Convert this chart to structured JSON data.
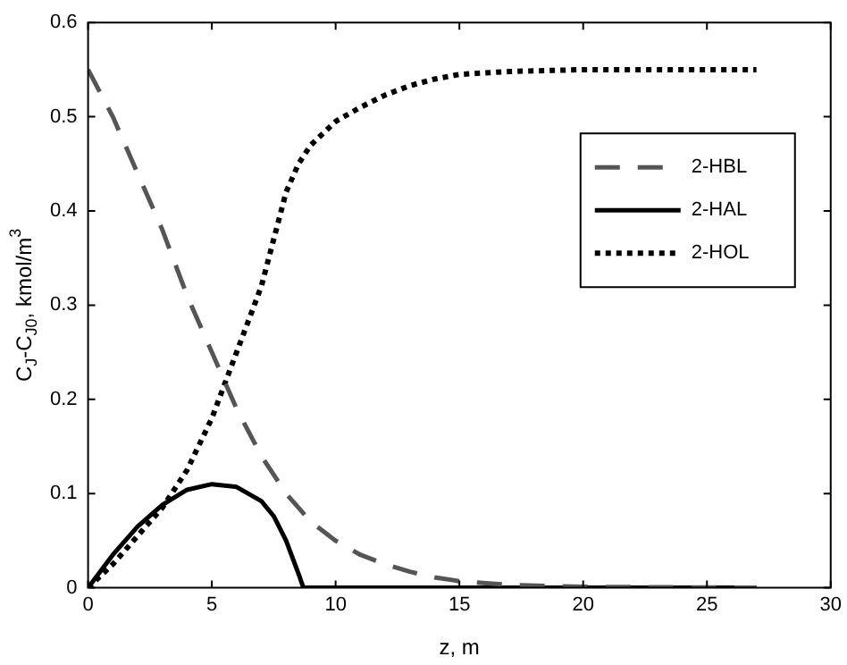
{
  "chart_data": {
    "type": "line",
    "xlabel": "z, m",
    "ylabel": "C$_{J}$-C$_{J0}$, kmol/m$^{3}$",
    "xlim": [
      0,
      30
    ],
    "xticks": [
      0,
      5,
      10,
      15,
      20,
      25,
      30
    ],
    "ylim": [
      0,
      0.6
    ],
    "yticks": [
      0,
      0.1,
      0.2,
      0.3,
      0.4,
      0.5,
      0.6
    ],
    "grid": false,
    "legend": "top right",
    "marker": "none",
    "series": [
      {
        "name": "2-HBL",
        "color": "#555555",
        "line_style": "dashed",
        "x": [
          0,
          1,
          2,
          3,
          4,
          5,
          6,
          7,
          8,
          9,
          10,
          11,
          12,
          13,
          14,
          15,
          17,
          20,
          27
        ],
        "values": [
          0.55,
          0.5,
          0.44,
          0.38,
          0.31,
          0.25,
          0.19,
          0.14,
          0.1,
          0.07,
          0.05,
          0.035,
          0.025,
          0.017,
          0.011,
          0.007,
          0.003,
          0.001,
          0
        ]
      },
      {
        "name": "2-HAL",
        "color": "#000000",
        "line_style": "solid",
        "x": [
          0,
          1,
          2,
          3,
          4,
          5,
          6,
          7,
          7.5,
          8,
          8.5,
          8.7,
          27
        ],
        "values": [
          0,
          0.035,
          0.065,
          0.088,
          0.104,
          0.11,
          0.107,
          0.092,
          0.076,
          0.05,
          0.015,
          0,
          0
        ]
      },
      {
        "name": "2-HOL",
        "color": "#000000",
        "line_style": "dotted",
        "x": [
          0,
          1,
          2,
          3,
          4,
          5,
          6,
          7,
          7.5,
          8,
          8.5,
          9,
          10,
          11,
          12,
          13,
          14,
          15,
          17,
          20,
          27
        ],
        "values": [
          0,
          0.025,
          0.055,
          0.085,
          0.125,
          0.18,
          0.25,
          0.32,
          0.37,
          0.42,
          0.45,
          0.47,
          0.495,
          0.51,
          0.523,
          0.533,
          0.54,
          0.545,
          0.548,
          0.55,
          0.55
        ]
      }
    ]
  }
}
